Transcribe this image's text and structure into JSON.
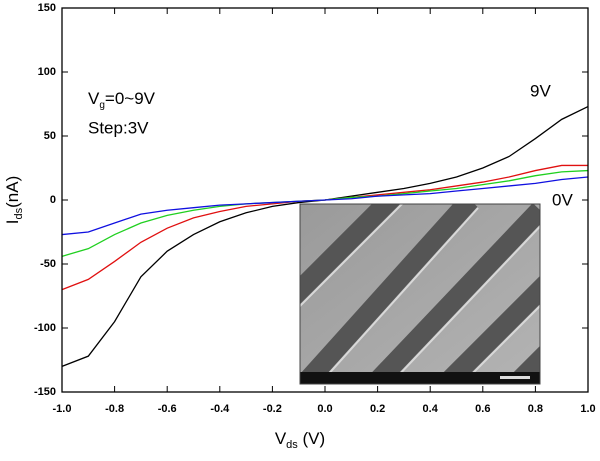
{
  "chart_data": {
    "type": "line",
    "x_label": [
      "V",
      "ds",
      " (V)"
    ],
    "y_label": [
      "I",
      "ds",
      "(nA)"
    ],
    "annotations": {
      "gate": [
        "V",
        "g",
        "=0~9V"
      ],
      "step": "Step:3V",
      "top": "9V",
      "bottom": "0V"
    },
    "x": [
      -1.0,
      -0.9,
      -0.8,
      -0.7,
      -0.6,
      -0.5,
      -0.4,
      -0.3,
      -0.2,
      -0.1,
      0.0,
      0.1,
      0.2,
      0.3,
      0.4,
      0.5,
      0.6,
      0.7,
      0.8,
      0.9,
      1.0
    ],
    "series": [
      {
        "color": "#000000",
        "values": [
          -130,
          -122,
          -95,
          -60,
          -40,
          -27,
          -17,
          -10,
          -5,
          -2,
          0,
          3,
          6,
          9,
          13,
          18,
          25,
          34,
          48,
          63,
          73
        ]
      },
      {
        "color": "#e01010",
        "values": [
          -70,
          -62,
          -48,
          -33,
          -22,
          -14,
          -9,
          -5,
          -3,
          -1,
          0,
          2,
          4,
          6,
          8,
          11,
          14,
          18,
          23,
          27,
          27
        ]
      },
      {
        "color": "#20d020",
        "values": [
          -44,
          -38,
          -27,
          -18,
          -12,
          -8,
          -5,
          -3,
          -2,
          -1,
          0,
          2,
          3,
          5,
          7,
          9,
          12,
          15,
          19,
          22,
          23
        ]
      },
      {
        "color": "#1010e0",
        "values": [
          -27,
          -25,
          -18,
          -11,
          -8,
          -6,
          -4,
          -3,
          -2,
          -1,
          0,
          1,
          3,
          4,
          5,
          7,
          9,
          11,
          13,
          16,
          18
        ]
      }
    ],
    "xlim": [
      -1.0,
      1.0
    ],
    "xticks": [
      {
        "value": -1.0,
        "label": "-1.0"
      },
      {
        "value": -0.8,
        "label": "-0.8"
      },
      {
        "value": -0.6,
        "label": "-0.6"
      },
      {
        "value": -0.4,
        "label": "-0.4"
      },
      {
        "value": -0.2,
        "label": "-0.2"
      },
      {
        "value": 0.0,
        "label": "0.0"
      },
      {
        "value": 0.2,
        "label": "0.2"
      },
      {
        "value": 0.4,
        "label": "0.4"
      },
      {
        "value": 0.6,
        "label": "0.6"
      },
      {
        "value": 0.8,
        "label": "0.8"
      },
      {
        "value": 1.0,
        "label": "1.0"
      }
    ],
    "ylim": [
      -150,
      150
    ],
    "yticks": [
      -150,
      -100,
      -50,
      0,
      50,
      100,
      150
    ],
    "grid": false
  }
}
